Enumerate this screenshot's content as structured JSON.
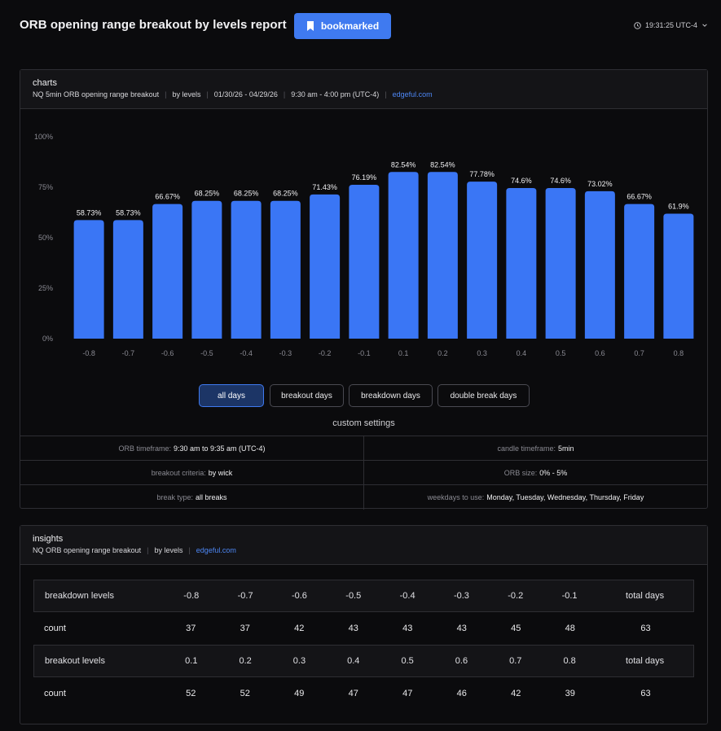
{
  "header": {
    "title": "ORB opening range breakout by levels report",
    "bookmark_label": "bookmarked",
    "time": "19:31:25 UTC-4"
  },
  "charts_card": {
    "title": "charts",
    "sub": [
      "NQ 5min ORB opening range breakout",
      "by levels",
      "01/30/26 - 04/29/26",
      "9:30 am - 4:00 pm (UTC-4)"
    ],
    "link": "edgeful.com"
  },
  "chart_data": {
    "type": "bar",
    "categories": [
      "-0.8",
      "-0.7",
      "-0.6",
      "-0.5",
      "-0.4",
      "-0.3",
      "-0.2",
      "-0.1",
      "0.1",
      "0.2",
      "0.3",
      "0.4",
      "0.5",
      "0.6",
      "0.7",
      "0.8"
    ],
    "values": [
      58.73,
      58.73,
      66.67,
      68.25,
      68.25,
      68.25,
      71.43,
      76.19,
      82.54,
      82.54,
      77.78,
      74.6,
      74.6,
      73.02,
      66.67,
      61.9
    ],
    "value_labels": [
      "58.73%",
      "58.73%",
      "66.67%",
      "68.25%",
      "68.25%",
      "68.25%",
      "71.43%",
      "76.19%",
      "82.54%",
      "82.54%",
      "77.78%",
      "74.6%",
      "74.6%",
      "73.02%",
      "66.67%",
      "61.9%"
    ],
    "yticks": [
      "0%",
      "25%",
      "50%",
      "75%",
      "100%"
    ],
    "ylim": [
      0,
      100
    ],
    "bar_color": "#3a76f5",
    "grid": false
  },
  "filters": [
    {
      "label": "all days",
      "active": true
    },
    {
      "label": "breakout days",
      "active": false
    },
    {
      "label": "breakdown days",
      "active": false
    },
    {
      "label": "double break days",
      "active": false
    }
  ],
  "custom_settings": {
    "title": "custom settings",
    "rows": [
      [
        {
          "label": "ORB timeframe:",
          "value": "9:30 am to 9:35 am (UTC-4)"
        },
        {
          "label": "candle timeframe:",
          "value": "5min"
        }
      ],
      [
        {
          "label": "breakout criteria:",
          "value": "by wick"
        },
        {
          "label": "ORB size:",
          "value": "0% - 5%"
        }
      ],
      [
        {
          "label": "break type:",
          "value": "all breaks"
        },
        {
          "label": "weekdays to use:",
          "value": "Monday, Tuesday, Wednesday, Thursday, Friday"
        }
      ]
    ]
  },
  "insights_card": {
    "title": "insights",
    "sub": [
      "NQ ORB opening range breakout",
      "by levels"
    ],
    "link": "edgeful.com",
    "breakdown": {
      "label": "breakdown levels",
      "levels": [
        "-0.8",
        "-0.7",
        "-0.6",
        "-0.5",
        "-0.4",
        "-0.3",
        "-0.2",
        "-0.1"
      ],
      "total_label": "total days",
      "count_label": "count",
      "counts": [
        "37",
        "37",
        "42",
        "43",
        "43",
        "43",
        "45",
        "48"
      ],
      "total": "63"
    },
    "breakout": {
      "label": "breakout levels",
      "levels": [
        "0.1",
        "0.2",
        "0.3",
        "0.4",
        "0.5",
        "0.6",
        "0.7",
        "0.8"
      ],
      "total_label": "total days",
      "count_label": "count",
      "counts": [
        "52",
        "52",
        "49",
        "47",
        "47",
        "46",
        "42",
        "39"
      ],
      "total": "63"
    }
  },
  "colors": {
    "accent": "#3f7af0",
    "link": "#4d87f5",
    "background": "#0b0b0d"
  },
  "icons": {
    "bookmark": "bookmark-icon",
    "clock": "clock-icon",
    "chevron": "chevron-down-icon"
  }
}
